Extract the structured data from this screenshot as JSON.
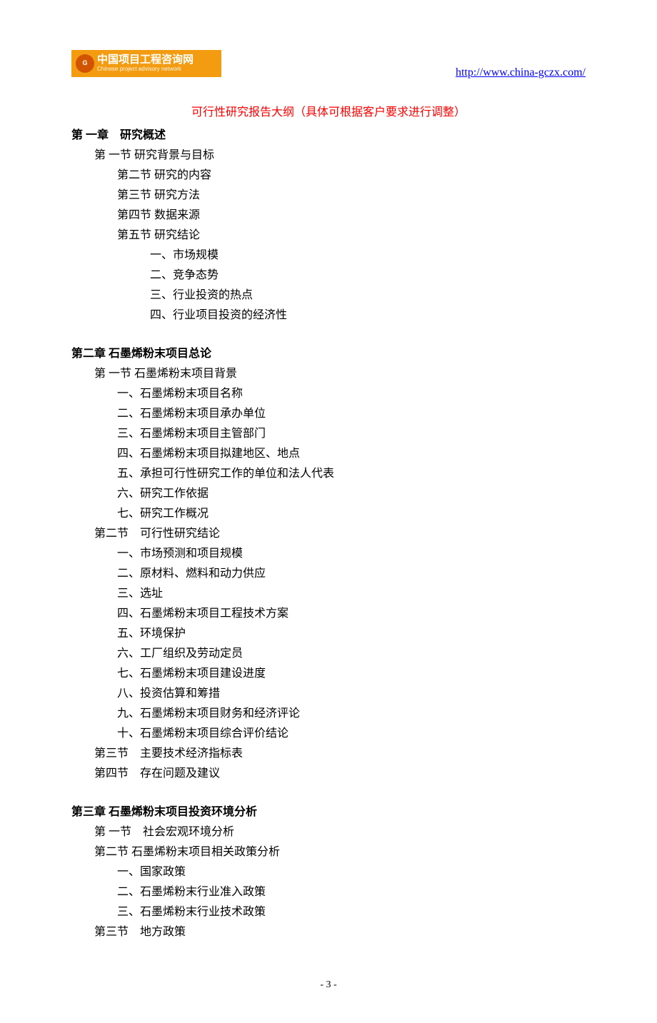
{
  "header": {
    "logo_abbr": "G",
    "logo_cn": "中国项目工程咨询网",
    "logo_en": "Chinese project advisory network",
    "url": "http://www.china-gczx.com/"
  },
  "outline": {
    "title": "可行性研究报告大纲（具体可根据客户要求进行调整）",
    "title_color": "#ff0000"
  },
  "chapter1": {
    "title": "第 一章　研究概述",
    "s1": "第 一节  研究背景与目标",
    "s2": "第二节  研究的内容",
    "s3": "第三节  研究方法",
    "s4": "第四节  数据来源",
    "s5": "第五节  研究结论",
    "i1": "一、市场规模",
    "i2": "二、竞争态势",
    "i3": "三、行业投资的热点",
    "i4": "四、行业项目投资的经济性"
  },
  "chapter2": {
    "title": "第二章  石墨烯粉末项目总论",
    "s1": "第 一节  石墨烯粉末项目背景",
    "s1_items": [
      "一、石墨烯粉末项目名称",
      "二、石墨烯粉末项目承办单位",
      "三、石墨烯粉末项目主管部门",
      "四、石墨烯粉末项目拟建地区、地点",
      "五、承担可行性研究工作的单位和法人代表",
      "六、研究工作依据",
      "七、研究工作概况"
    ],
    "s2": "第二节　可行性研究结论",
    "s2_items": [
      "一、市场预测和项目规模",
      "二、原材料、燃料和动力供应",
      "三、选址",
      "四、石墨烯粉末项目工程技术方案",
      "五、环境保护",
      "六、工厂组织及劳动定员",
      "七、石墨烯粉末项目建设进度",
      "八、投资估算和筹措",
      "九、石墨烯粉末项目财务和经济评论",
      "十、石墨烯粉末项目综合评价结论"
    ],
    "s3": "第三节　主要技术经济指标表",
    "s4": "第四节　存在问题及建议"
  },
  "chapter3": {
    "title": "第三章  石墨烯粉末项目投资环境分析",
    "s1": "第 一节　社会宏观环境分析",
    "s2": "第二节  石墨烯粉末项目相关政策分析",
    "s2_items": [
      "一、国家政策",
      "二、石墨烯粉末行业准入政策",
      "三、石墨烯粉末行业技术政策"
    ],
    "s3": "第三节　地方政策"
  },
  "page_number": "- 3 -",
  "colors": {
    "text": "#000000",
    "link": "#0000ff",
    "banner_bg": "#f39c12",
    "banner_fg": "#ffffff"
  }
}
